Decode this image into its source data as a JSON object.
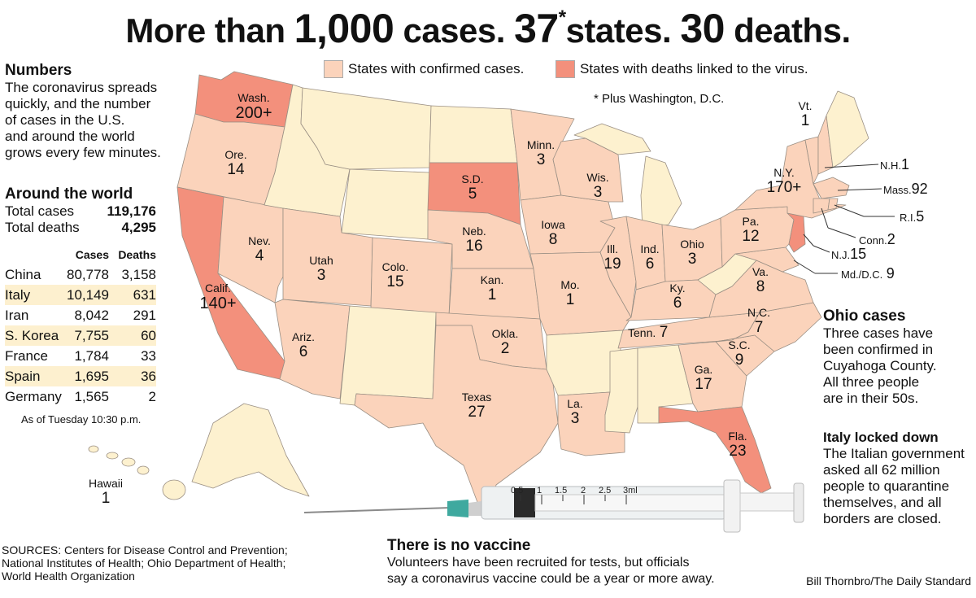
{
  "headline": {
    "part1": "More than",
    "num1": "1,000",
    "part2": "cases.",
    "num2": "37",
    "asterisk": "*",
    "part3": "states.",
    "num3": "30",
    "part4": "deaths."
  },
  "legend": {
    "confirmed_label": "States with confirmed cases.",
    "deaths_label": "States with deaths linked to the virus.",
    "footnote": "* Plus Washington, D.C.",
    "colors": {
      "confirmed": "#fbd3bb",
      "deaths": "#f3907c",
      "none": "#fdf1cf"
    }
  },
  "numbers": {
    "heading": "Numbers",
    "lines": [
      "The coronavirus spreads",
      "quickly, and the number",
      "of cases in the U.S.",
      "and around the world",
      "grows every few minutes."
    ]
  },
  "world": {
    "heading": "Around the world",
    "total_cases_label": "Total cases",
    "total_cases": "119,176",
    "total_deaths_label": "Total deaths",
    "total_deaths": "4,295",
    "col_cases": "Cases",
    "col_deaths": "Deaths",
    "rows": [
      {
        "country": "China",
        "cases": "80,778",
        "deaths": "3,158"
      },
      {
        "country": "Italy",
        "cases": "10,149",
        "deaths": "631"
      },
      {
        "country": "Iran",
        "cases": "8,042",
        "deaths": "291"
      },
      {
        "country": "S. Korea",
        "cases": "7,755",
        "deaths": "60"
      },
      {
        "country": "France",
        "cases": "1,784",
        "deaths": "33"
      },
      {
        "country": "Spain",
        "cases": "1,695",
        "deaths": "36"
      },
      {
        "country": "Germany",
        "cases": "1,565",
        "deaths": "2"
      }
    ],
    "as_of": "As of Tuesday 10:30 p.m."
  },
  "states": {
    "wa": {
      "name": "Wash.",
      "num": "200+"
    },
    "or": {
      "name": "Ore.",
      "num": "14"
    },
    "ca": {
      "name": "Calif.",
      "num": "140+"
    },
    "nv": {
      "name": "Nev.",
      "num": "4"
    },
    "ut": {
      "name": "Utah",
      "num": "3"
    },
    "az": {
      "name": "Ariz.",
      "num": "6"
    },
    "co": {
      "name": "Colo.",
      "num": "15"
    },
    "sd": {
      "name": "S.D.",
      "num": "5"
    },
    "ne": {
      "name": "Neb.",
      "num": "16"
    },
    "ks": {
      "name": "Kan.",
      "num": "1"
    },
    "ok": {
      "name": "Okla.",
      "num": "2"
    },
    "tx": {
      "name": "Texas",
      "num": "27"
    },
    "mn": {
      "name": "Minn.",
      "num": "3"
    },
    "ia": {
      "name": "Iowa",
      "num": "8"
    },
    "mo": {
      "name": "Mo.",
      "num": "1"
    },
    "la": {
      "name": "La.",
      "num": "3"
    },
    "wi": {
      "name": "Wis.",
      "num": "3"
    },
    "il": {
      "name": "Ill.",
      "num": "19"
    },
    "in": {
      "name": "Ind.",
      "num": "6"
    },
    "oh": {
      "name": "Ohio",
      "num": "3"
    },
    "ky": {
      "name": "Ky.",
      "num": "6"
    },
    "tn": {
      "name": "Tenn.",
      "num": "7"
    },
    "ga": {
      "name": "Ga.",
      "num": "17"
    },
    "fl": {
      "name": "Fla.",
      "num": "23"
    },
    "sc": {
      "name": "S.C.",
      "num": "9"
    },
    "nc": {
      "name": "N.C.",
      "num": "7"
    },
    "va": {
      "name": "Va.",
      "num": "8"
    },
    "pa": {
      "name": "Pa.",
      "num": "12"
    },
    "ny": {
      "name": "N.Y.",
      "num": "170+"
    },
    "vt": {
      "name": "Vt.",
      "num": "1"
    },
    "hi": {
      "name": "Hawaii",
      "num": "1"
    }
  },
  "side_labels": {
    "nh": {
      "name": "N.H.",
      "num": "1"
    },
    "ma": {
      "name": "Mass.",
      "num": "92"
    },
    "ri": {
      "name": "R.I.",
      "num": "5"
    },
    "ct": {
      "name": "Conn.",
      "num": "2"
    },
    "nj": {
      "name": "N.J.",
      "num": "15"
    },
    "md": {
      "name": "Md./D.C.",
      "num": "9"
    }
  },
  "ohio_cases": {
    "heading": "Ohio cases",
    "lines": [
      "Three cases have",
      "been confirmed in",
      "Cuyahoga County.",
      "All three people",
      "are in their 50s."
    ]
  },
  "italy": {
    "heading": "Italy locked down",
    "lines": [
      "The Italian government",
      "asked all 62 million",
      "people to quarantine",
      "themselves, and all",
      "borders are closed."
    ]
  },
  "vaccine": {
    "heading": "There is no vaccine",
    "lines": [
      "Volunteers have been recruited for tests, but officials",
      "say a coronavirus vaccine could be a year or more away."
    ]
  },
  "syringe_marks": [
    "0.5",
    "1",
    "1.5",
    "2",
    "2.5",
    "3ml"
  ],
  "sources": {
    "lines": [
      "SOURCES: Centers for Disease Control and Prevention;",
      "National Institutes of Health; Ohio Department of Health;",
      "World Health Organization"
    ]
  },
  "credit": "Bill Thornbro/The Daily Standard"
}
